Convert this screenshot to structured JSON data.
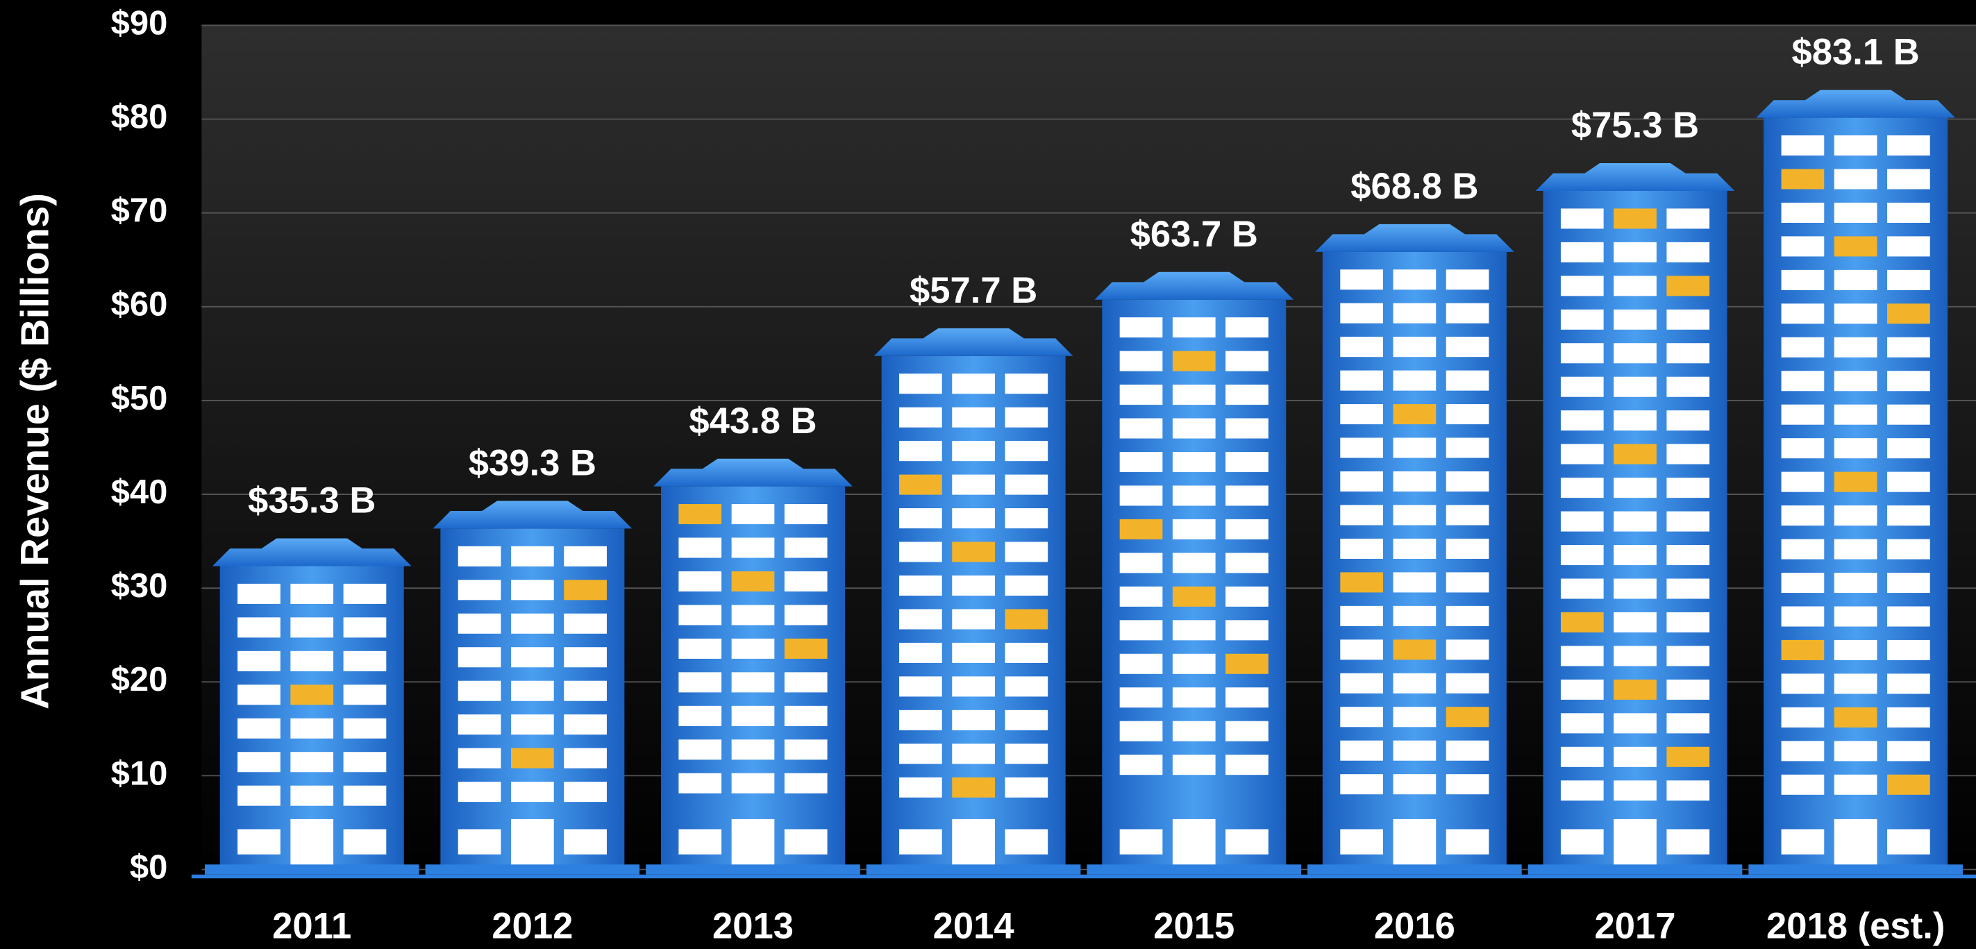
{
  "chart_data": {
    "type": "bar",
    "y_label": "Annual Revenue ($ Billions)",
    "categories": [
      "2011",
      "2012",
      "2013",
      "2014",
      "2015",
      "2016",
      "2017",
      "2018 (est.)"
    ],
    "values": [
      35.3,
      39.3,
      43.8,
      57.7,
      63.7,
      68.8,
      75.3,
      83.1
    ],
    "value_labels": [
      "$35.3 B",
      "$39.3 B",
      "$43.8 B",
      "$57.7 B",
      "$63.7 B",
      "$68.8 B",
      "$75.3 B",
      "$83.1 B"
    ],
    "color": "#2f8ae6",
    "ylim": [
      0,
      90
    ],
    "yticks": [
      {
        "value": 0,
        "label": "$0"
      },
      {
        "value": 10,
        "label": "$10"
      },
      {
        "value": 20,
        "label": "$20"
      },
      {
        "value": 30,
        "label": "$30"
      },
      {
        "value": 40,
        "label": "$40"
      },
      {
        "value": 50,
        "label": "$50"
      },
      {
        "value": 60,
        "label": "$60"
      },
      {
        "value": 70,
        "label": "$70"
      },
      {
        "value": 80,
        "label": "$80"
      },
      {
        "value": 90,
        "label": "$90"
      }
    ],
    "grid": true
  }
}
